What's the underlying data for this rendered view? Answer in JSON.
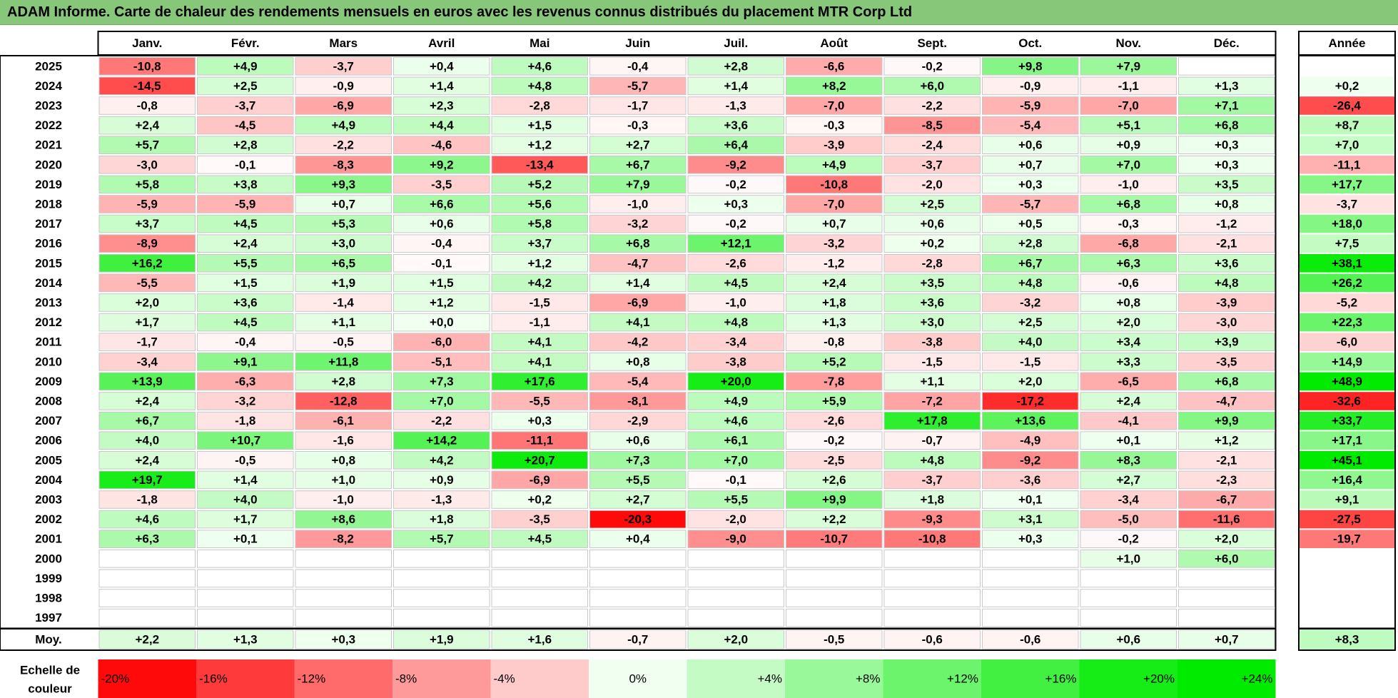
{
  "title": "ADAM Informe. Carte de chaleur des rendements mensuels en euros avec les revenus connus distribués du placement MTR Corp Ltd",
  "chart_data": {
    "type": "heatmap",
    "title": "ADAM Informe. Carte de chaleur des rendements mensuels en euros avec les revenus connus distribués du placement MTR Corp Ltd",
    "months": [
      "Janv.",
      "Févr.",
      "Mars",
      "Avril",
      "Mai",
      "Juin",
      "Juil.",
      "Août",
      "Sept.",
      "Oct.",
      "Nov.",
      "Déc."
    ],
    "year_label": "Année",
    "years": [
      "2025",
      "2024",
      "2023",
      "2022",
      "2021",
      "2020",
      "2019",
      "2018",
      "2017",
      "2016",
      "2015",
      "2014",
      "2013",
      "2012",
      "2011",
      "2010",
      "2009",
      "2008",
      "2007",
      "2006",
      "2005",
      "2004",
      "2003",
      "2002",
      "2001",
      "2000",
      "1999",
      "1998",
      "1997"
    ],
    "values": [
      [
        "-10,8",
        "+4,9",
        "-3,7",
        "+0,4",
        "+4,6",
        "-0,4",
        "+2,8",
        "-6,6",
        "-0,2",
        "+9,8",
        "+7,9",
        ""
      ],
      [
        "-14,5",
        "+2,5",
        "-0,9",
        "+1,4",
        "+4,8",
        "-5,7",
        "+1,4",
        "+8,2",
        "+6,0",
        "-0,9",
        "-1,1",
        "+1,3"
      ],
      [
        "-0,8",
        "-3,7",
        "-6,9",
        "+2,3",
        "-2,8",
        "-1,7",
        "-1,3",
        "-7,0",
        "-2,2",
        "-5,9",
        "-7,0",
        "+7,1"
      ],
      [
        "+2,4",
        "-4,5",
        "+4,9",
        "+4,4",
        "+1,5",
        "-0,3",
        "+3,6",
        "-0,3",
        "-8,5",
        "-5,4",
        "+5,1",
        "+6,8"
      ],
      [
        "+5,7",
        "+2,8",
        "-2,2",
        "-4,6",
        "+1,2",
        "+2,7",
        "+6,4",
        "-3,9",
        "-2,4",
        "+0,6",
        "+0,9",
        "+0,3"
      ],
      [
        "-3,0",
        "-0,1",
        "-8,3",
        "+9,2",
        "-13,4",
        "+6,7",
        "-9,2",
        "+4,9",
        "-3,7",
        "+0,7",
        "+7,0",
        "+0,3"
      ],
      [
        "+5,8",
        "+3,8",
        "+9,3",
        "-3,5",
        "+5,2",
        "+7,9",
        "-0,2",
        "-10,8",
        "-2,0",
        "+0,3",
        "-1,0",
        "+3,5"
      ],
      [
        "-5,9",
        "-5,9",
        "+0,7",
        "+6,6",
        "+5,6",
        "-1,0",
        "+0,3",
        "-7,0",
        "+2,5",
        "-5,7",
        "+6,8",
        "+0,8"
      ],
      [
        "+3,7",
        "+4,5",
        "+5,3",
        "+0,6",
        "+5,8",
        "-3,2",
        "-0,2",
        "+0,7",
        "+0,6",
        "+0,5",
        "-0,3",
        "-1,2"
      ],
      [
        "-8,9",
        "+2,4",
        "+3,0",
        "-0,4",
        "+3,7",
        "+6,8",
        "+12,1",
        "-3,2",
        "+0,2",
        "+2,8",
        "-6,8",
        "-2,1"
      ],
      [
        "+16,2",
        "+5,5",
        "+6,5",
        "-0,1",
        "+1,2",
        "-4,7",
        "-2,6",
        "-1,2",
        "-2,8",
        "+6,7",
        "+6,3",
        "+3,6"
      ],
      [
        "-5,5",
        "+1,5",
        "+1,9",
        "+1,5",
        "+4,2",
        "+1,4",
        "+4,5",
        "+2,4",
        "+3,5",
        "+4,8",
        "-0,6",
        "+4,8"
      ],
      [
        "+2,0",
        "+3,6",
        "-1,4",
        "+1,2",
        "-1,5",
        "-6,9",
        "-1,0",
        "+1,8",
        "+3,6",
        "-3,2",
        "+0,8",
        "-3,9"
      ],
      [
        "+1,7",
        "+4,5",
        "+1,1",
        "+0,0",
        "-1,1",
        "+4,1",
        "+4,8",
        "+1,3",
        "+3,0",
        "+2,5",
        "+2,0",
        "-3,0"
      ],
      [
        "-1,7",
        "-0,4",
        "-0,5",
        "-6,0",
        "+4,1",
        "-4,2",
        "-3,4",
        "-0,8",
        "-3,8",
        "+4,0",
        "+3,4",
        "+3,9"
      ],
      [
        "-3,4",
        "+9,1",
        "+11,8",
        "-5,1",
        "+4,1",
        "+0,8",
        "-3,8",
        "+5,2",
        "-1,5",
        "-1,5",
        "+3,3",
        "-3,5"
      ],
      [
        "+13,9",
        "-6,3",
        "+2,8",
        "+7,3",
        "+17,6",
        "-5,4",
        "+20,0",
        "-7,8",
        "+1,1",
        "+2,0",
        "-6,5",
        "+6,8"
      ],
      [
        "+2,4",
        "-3,2",
        "-12,8",
        "+7,0",
        "-5,5",
        "-8,1",
        "+4,9",
        "+5,9",
        "-7,2",
        "-17,2",
        "+2,4",
        "-4,7"
      ],
      [
        "+6,7",
        "-1,8",
        "-6,1",
        "-2,2",
        "+0,3",
        "-2,9",
        "+4,6",
        "-2,6",
        "+17,8",
        "+13,6",
        "-4,1",
        "+9,9"
      ],
      [
        "+4,0",
        "+10,7",
        "-1,6",
        "+14,2",
        "-11,1",
        "+0,6",
        "+6,1",
        "-0,2",
        "-0,7",
        "-4,9",
        "+0,1",
        "+1,2"
      ],
      [
        "+2,4",
        "-0,5",
        "+0,8",
        "+4,2",
        "+20,7",
        "+7,3",
        "+7,0",
        "-2,5",
        "+4,8",
        "-9,2",
        "+8,3",
        "-2,1"
      ],
      [
        "+19,7",
        "+1,4",
        "+1,0",
        "+0,9",
        "-6,9",
        "+5,5",
        "-0,1",
        "+2,6",
        "-3,7",
        "-3,6",
        "+2,7",
        "-2,3"
      ],
      [
        "-1,8",
        "+4,0",
        "-1,0",
        "-1,3",
        "+0,2",
        "+2,7",
        "+5,5",
        "+9,9",
        "+1,8",
        "+0,1",
        "-3,4",
        "-6,7"
      ],
      [
        "+4,6",
        "+1,7",
        "+8,6",
        "+1,8",
        "-3,5",
        "-20,3",
        "-2,0",
        "+2,2",
        "-9,3",
        "+3,1",
        "-5,0",
        "-11,6"
      ],
      [
        "+6,3",
        "+0,1",
        "-8,2",
        "+5,7",
        "+4,5",
        "+0,4",
        "-9,0",
        "-10,7",
        "-10,8",
        "+0,3",
        "-0,2",
        "+2,0"
      ],
      [
        "",
        "",
        "",
        "",
        "",
        "",
        "",
        "",
        "",
        "",
        "+1,0",
        "+6,0"
      ],
      [
        "",
        "",
        "",
        "",
        "",
        "",
        "",
        "",
        "",
        "",
        "",
        ""
      ],
      [
        "",
        "",
        "",
        "",
        "",
        "",
        "",
        "",
        "",
        "",
        "",
        ""
      ],
      [
        "",
        "",
        "",
        "",
        "",
        "",
        "",
        "",
        "",
        "",
        "",
        ""
      ]
    ],
    "year_values": [
      "",
      "+0,2",
      "-26,4",
      "+8,7",
      "+7,0",
      "-11,1",
      "+17,7",
      "-3,7",
      "+18,0",
      "+7,5",
      "+38,1",
      "+26,2",
      "-5,2",
      "+22,3",
      "-6,0",
      "+14,9",
      "+48,9",
      "-32,6",
      "+33,7",
      "+17,1",
      "+45,1",
      "+16,4",
      "+9,1",
      "-27,5",
      "-19,7",
      "",
      "",
      "",
      ""
    ],
    "average_label": "Moy.",
    "averages": [
      "+2,2",
      "+1,3",
      "+0,3",
      "+1,9",
      "+1,6",
      "-0,7",
      "+2,0",
      "-0,5",
      "-0,6",
      "-0,6",
      "+0,6",
      "+0,7"
    ],
    "average_year": "+8,3",
    "scale_label": "Echelle de couleur",
    "scale": [
      "-20%",
      "-16%",
      "-12%",
      "-8%",
      "-4%",
      "0%",
      "+4%",
      "+8%",
      "+12%",
      "+16%",
      "+20%",
      "+24%"
    ],
    "scale_values": [
      -20,
      -16,
      -12,
      -8,
      -4,
      0,
      4,
      8,
      12,
      16,
      20,
      24
    ],
    "colors": {
      "negative": "#ff0000",
      "positive": "#00ee00",
      "neutral": "#ffffff",
      "title_bg": "#86c77a"
    }
  }
}
